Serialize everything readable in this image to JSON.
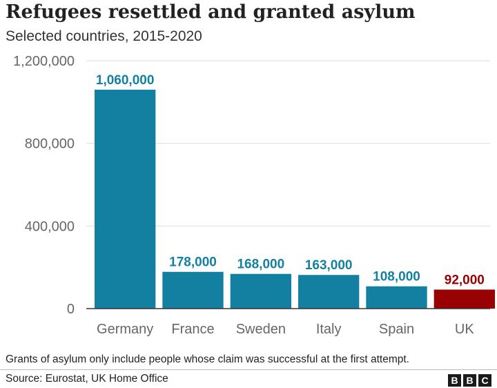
{
  "header": {
    "title": "Refugees resettled and granted asylum",
    "subtitle": "Selected countries, 2015-2020"
  },
  "chart_data": {
    "type": "bar",
    "title": "Refugees resettled and granted asylum",
    "subtitle": "Selected countries, 2015-2020",
    "xlabel": "",
    "ylabel": "",
    "categories": [
      "Germany",
      "France",
      "Sweden",
      "Italy",
      "Spain",
      "UK"
    ],
    "values": [
      1060000,
      178000,
      168000,
      163000,
      108000,
      92000
    ],
    "value_labels": [
      "1,060,000",
      "178,000",
      "168,000",
      "163,000",
      "108,000",
      "92,000"
    ],
    "ylim": [
      0,
      1200000
    ],
    "yticks": [
      0,
      400000,
      800000,
      1200000
    ],
    "ytick_labels": [
      "0",
      "400,000",
      "800,000",
      "1,200,000"
    ],
    "grid": true,
    "colors": {
      "default_bar": "#1380A1",
      "highlight_bar": "#990000",
      "highlight_category": "UK",
      "gridline": "#dddddd",
      "axis": "#333333",
      "tick_label": "#666666"
    }
  },
  "footer": {
    "note": "Grants of asylum only include people whose claim was successful at the first attempt.",
    "source": "Source: Eurostat, UK Home Office",
    "logo_letters": [
      "B",
      "B",
      "C"
    ]
  }
}
